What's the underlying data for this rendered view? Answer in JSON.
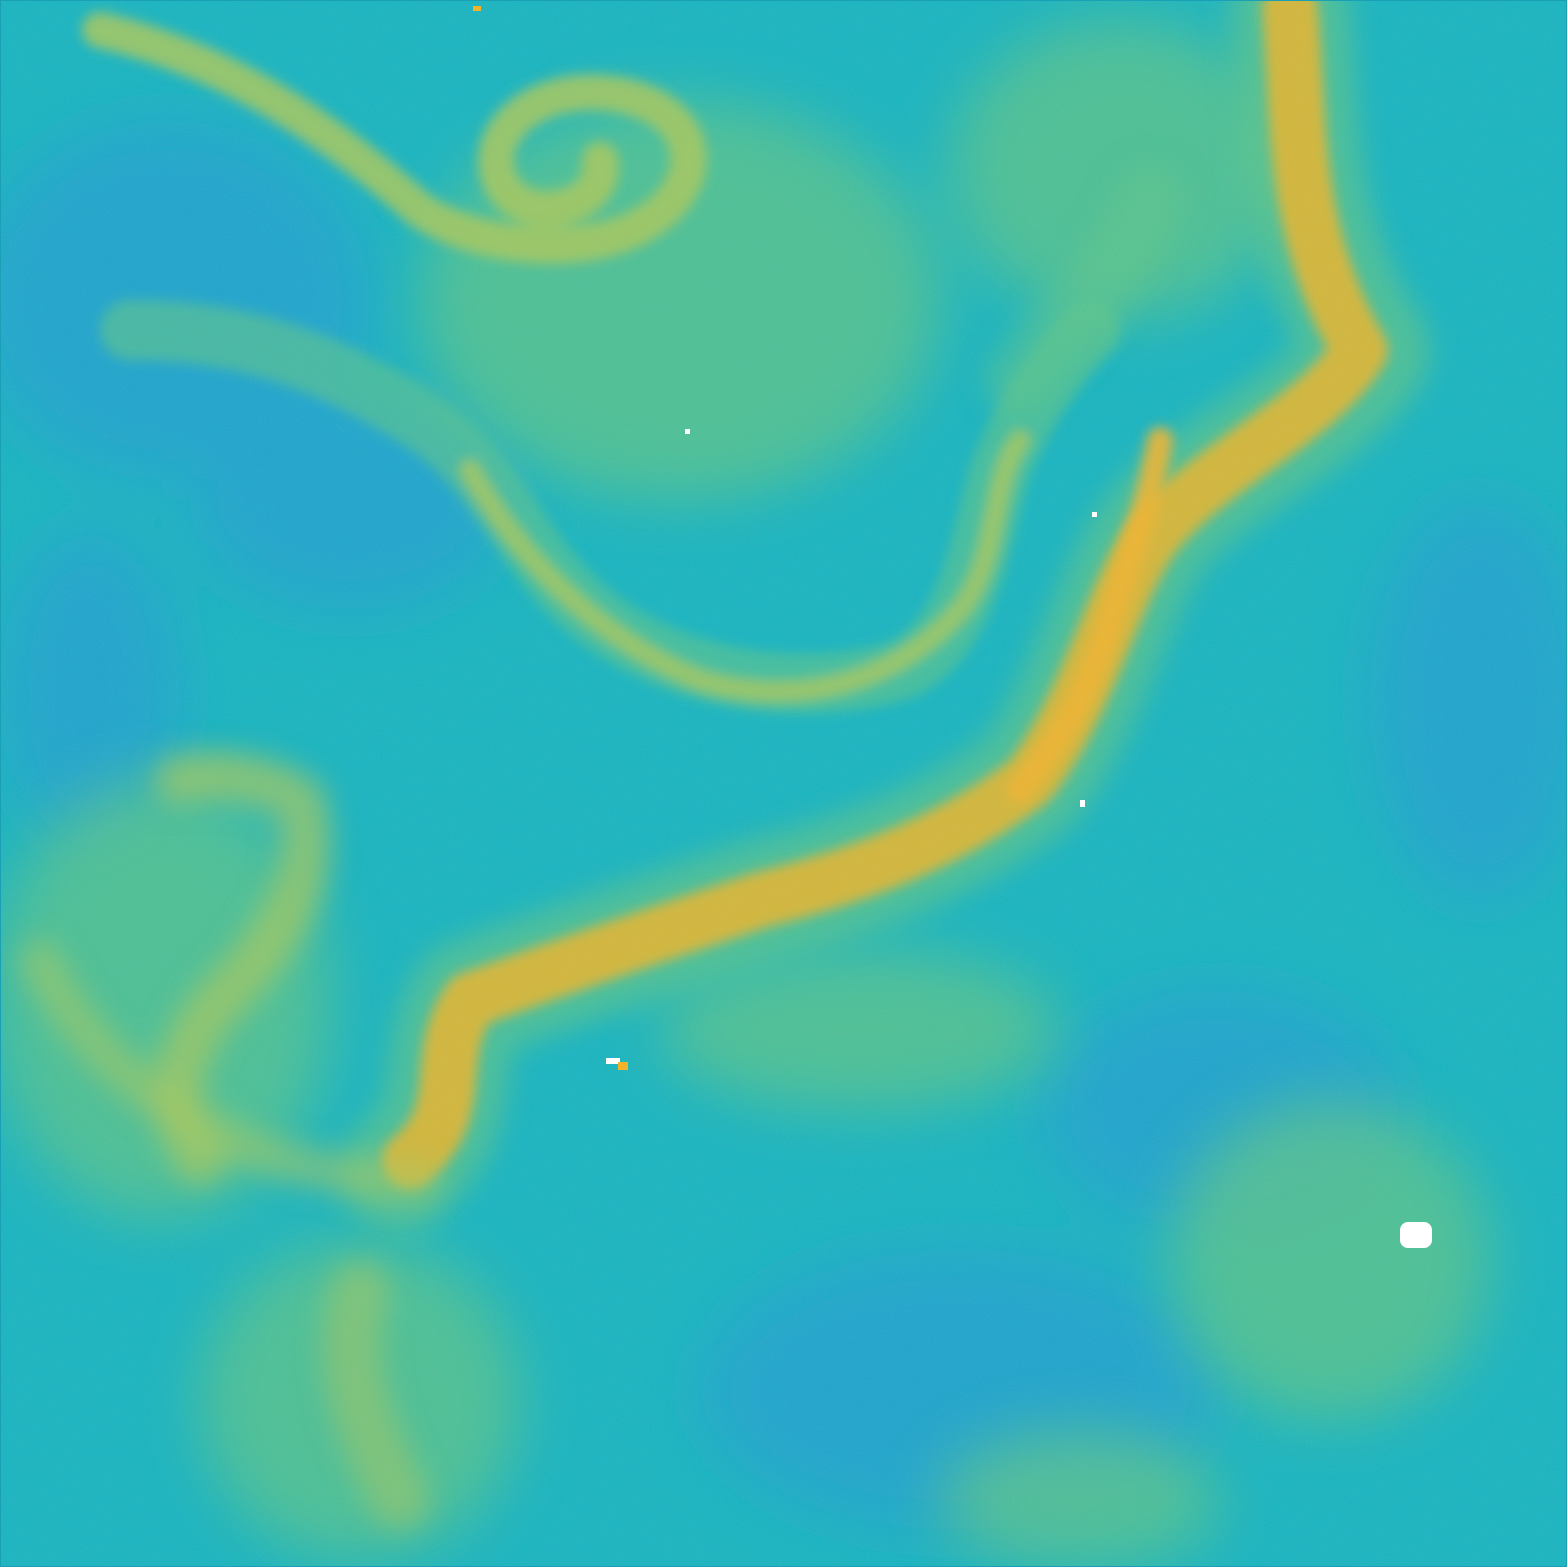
{
  "image": {
    "kind": "false-color field map",
    "colormap": "viridis-like",
    "colors": {
      "background": "#12b3c1",
      "deep": "#1aa0d2",
      "low": "#2cbcae",
      "mid": "#5cc487",
      "high": "#a7c85a",
      "peak": "#dcb532",
      "hot": "#f2b32a",
      "nodata": "#ffffff",
      "frame": "#1a9fb4"
    }
  }
}
